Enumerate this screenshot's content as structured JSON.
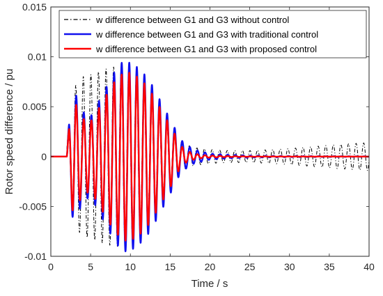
{
  "chart_data": {
    "type": "line",
    "title": "",
    "xlabel": "Time / s",
    "ylabel": "Rotor speed difference / pu",
    "xlim": [
      0,
      40
    ],
    "ylim": [
      -0.01,
      0.015
    ],
    "x_ticks": [
      "0",
      "5",
      "10",
      "15",
      "20",
      "25",
      "30",
      "35",
      "40"
    ],
    "x_tick_values": [
      0,
      5,
      10,
      15,
      20,
      25,
      30,
      35,
      40
    ],
    "y_ticks": [
      "-0.01",
      "-0.005",
      "0",
      "0.005",
      "0.01",
      "0.015"
    ],
    "y_tick_values": [
      -0.01,
      -0.005,
      0,
      0.005,
      0.01,
      0.015
    ],
    "grid": false,
    "legend_position": "top",
    "series": [
      {
        "name": "w difference between G1 and G3 without control",
        "color": "#000000",
        "style": "dash-dot",
        "x": [
          0,
          2.0,
          2.5,
          3.0,
          4.0,
          5.0,
          6.0,
          7.0,
          8.0,
          9.0,
          10.0,
          11.0,
          12.0,
          13.0,
          14.0,
          15.0,
          16.0,
          17.0,
          18.0,
          20.0,
          22.0,
          25.0,
          28.0,
          30.0,
          33.0,
          36.0,
          40.0
        ],
        "envelope": [
          0,
          0.0015,
          0.004,
          0.007,
          0.008,
          0.0082,
          0.0085,
          0.0088,
          0.009,
          0.009,
          0.0088,
          0.0082,
          0.0072,
          0.006,
          0.0045,
          0.003,
          0.0018,
          0.0012,
          0.0009,
          0.0007,
          0.0006,
          0.0006,
          0.0007,
          0.0008,
          0.001,
          0.0012,
          0.0014
        ],
        "frequency_hz": 1.05
      },
      {
        "name": "w difference between G1 and G3 with traditional control",
        "color": "#1010ee",
        "style": "solid",
        "x": [
          0,
          2.0,
          2.3,
          2.8,
          3.3,
          4.0,
          5.0,
          6.0,
          7.0,
          8.0,
          9.0,
          9.6,
          10.5,
          11.5,
          12.5,
          13.5,
          14.5,
          15.5,
          16.2,
          17.0,
          18.0,
          19.0,
          20.0,
          22.0,
          25.0,
          30.0,
          40.0
        ],
        "envelope": [
          0,
          0.0005,
          0.0035,
          0.0065,
          0.006,
          0.0045,
          0.004,
          0.0055,
          0.007,
          0.0085,
          0.0095,
          0.0095,
          0.0092,
          0.0085,
          0.0075,
          0.006,
          0.0045,
          0.003,
          0.0018,
          0.0012,
          0.0007,
          0.0005,
          0.0003,
          0.0002,
          0.0001,
          5e-05,
          2e-05
        ],
        "frequency_hz": 1.05
      },
      {
        "name": "w difference between G1 and G3 with proposed control",
        "color": "#ff0000",
        "style": "solid",
        "x": [
          0,
          2.0,
          2.3,
          2.8,
          3.3,
          4.0,
          5.0,
          6.0,
          7.0,
          8.0,
          9.0,
          9.6,
          10.5,
          11.5,
          12.5,
          13.5,
          14.5,
          15.5,
          16.2,
          17.0,
          18.0,
          19.0,
          20.0,
          22.0,
          25.0,
          30.0,
          40.0
        ],
        "envelope": [
          0,
          0.0005,
          0.003,
          0.0058,
          0.005,
          0.0038,
          0.0035,
          0.0048,
          0.0062,
          0.0075,
          0.0083,
          0.0085,
          0.0082,
          0.0076,
          0.0066,
          0.0052,
          0.0038,
          0.0024,
          0.0012,
          0.0006,
          0.0003,
          0.00015,
          0.0001,
          5e-05,
          2e-05,
          1e-05,
          0.0
        ],
        "frequency_hz": 1.05
      }
    ]
  }
}
